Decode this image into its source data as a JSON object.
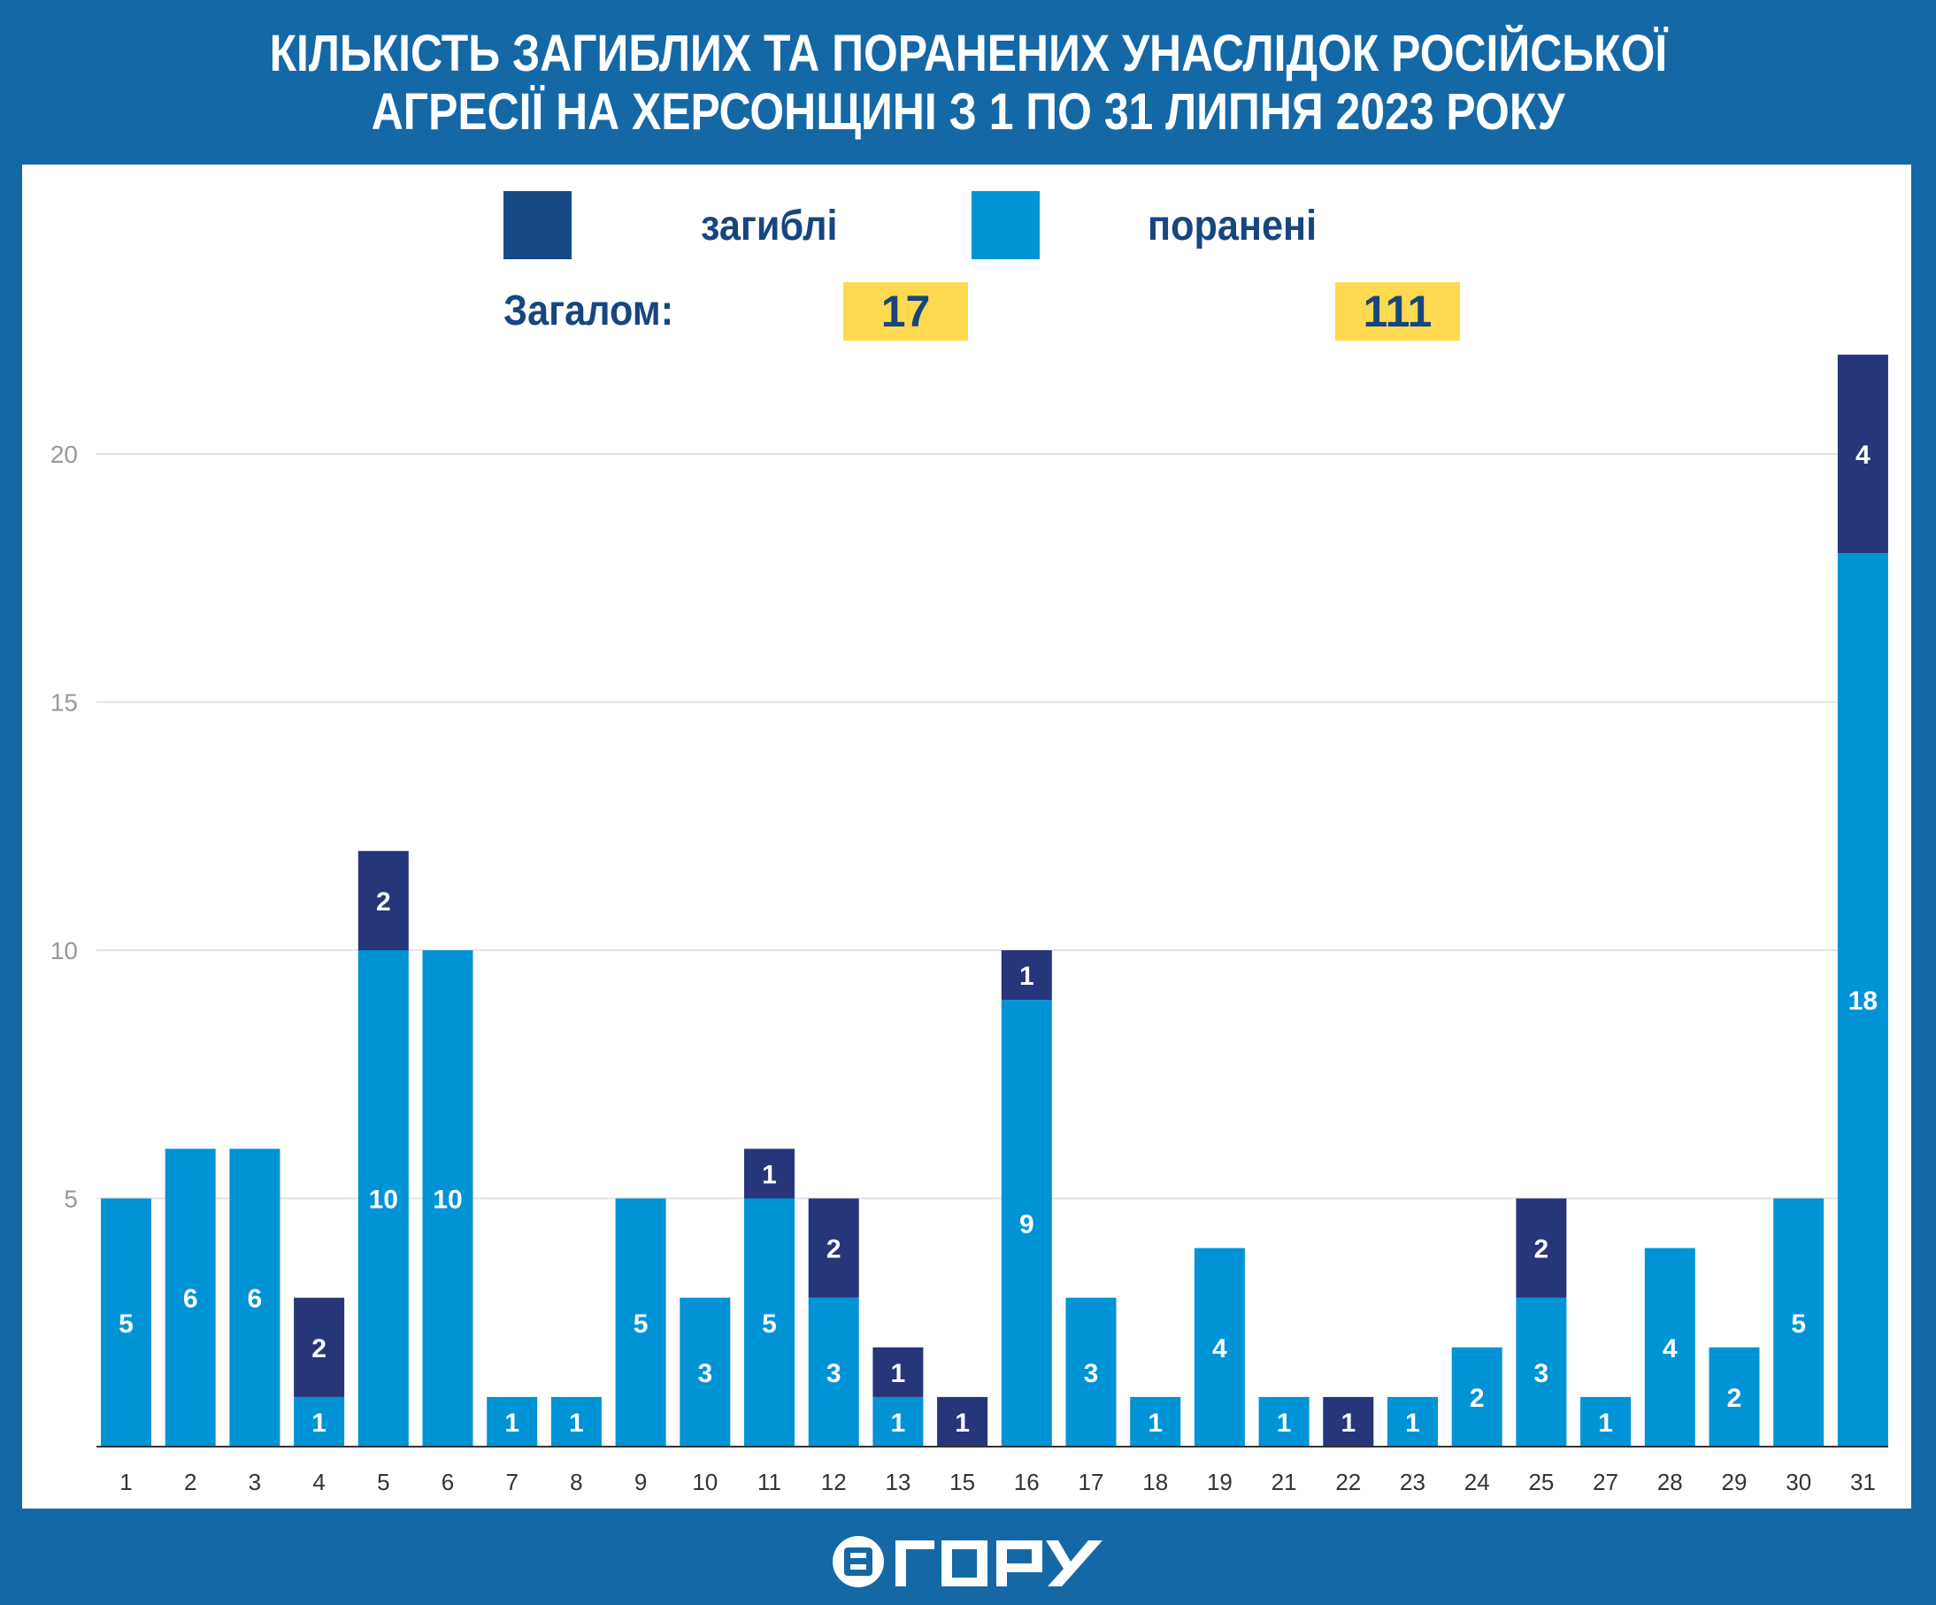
{
  "title": {
    "line1": "КІЛЬКІСТЬ ЗАГИБЛИХ ТА ПОРАНЕНИХ УНАСЛІДОК РОСІЙСЬКОЇ",
    "line2": "АГРЕСІЇ НА ХЕРСОНЩИНІ З 1 ПО 31 ЛИПНЯ 2023 РОКУ"
  },
  "legend": {
    "killed": "загиблі",
    "injured": "поранені"
  },
  "totals": {
    "label": "Загалом:",
    "killed": "17",
    "injured": "111"
  },
  "logo": "ВГОРУ",
  "colors": {
    "killed": "#27357a",
    "injured": "#0093d6",
    "legend_killed": "#174a84",
    "background": "#1468a6",
    "highlight": "#ffd94f"
  },
  "chart_data": {
    "type": "bar",
    "stacked": true,
    "title": "КІЛЬКІСТЬ ЗАГИБЛИХ ТА ПОРАНЕНИХ УНАСЛІДОК РОСІЙСЬКОЇ АГРЕСІЇ НА ХЕРСОНЩИНІ З 1 ПО 31 ЛИПНЯ 2023 РОКУ",
    "categories": [
      "1",
      "2",
      "3",
      "4",
      "5",
      "6",
      "7",
      "8",
      "9",
      "10",
      "11",
      "12",
      "13",
      "15",
      "16",
      "17",
      "18",
      "19",
      "21",
      "22",
      "23",
      "24",
      "25",
      "27",
      "28",
      "29",
      "30",
      "31"
    ],
    "series": [
      {
        "name": "поранені",
        "values": [
          5,
          6,
          6,
          1,
          10,
          10,
          1,
          1,
          5,
          3,
          5,
          3,
          1,
          0,
          9,
          3,
          1,
          4,
          1,
          0,
          1,
          2,
          3,
          1,
          4,
          2,
          5,
          18
        ]
      },
      {
        "name": "загиблі",
        "values": [
          0,
          0,
          0,
          2,
          2,
          0,
          0,
          0,
          0,
          0,
          1,
          2,
          1,
          1,
          1,
          0,
          0,
          0,
          0,
          1,
          0,
          0,
          2,
          0,
          0,
          0,
          0,
          4
        ]
      }
    ],
    "yticks": [
      "5",
      "10",
      "15",
      "20"
    ],
    "ylim": [
      0,
      22
    ],
    "grid": true,
    "legend_position": "top-center",
    "xlabel": "",
    "ylabel": ""
  }
}
